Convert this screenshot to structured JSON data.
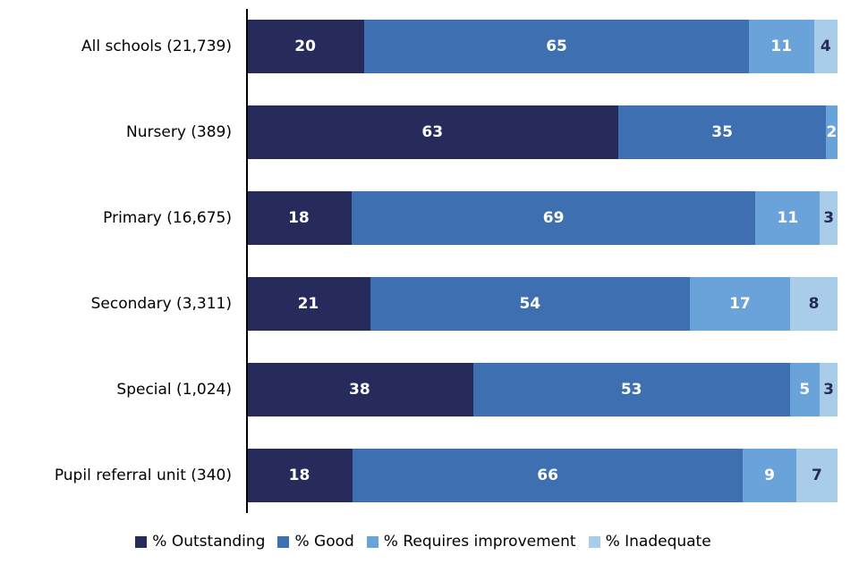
{
  "chart_data": {
    "type": "bar",
    "orientation": "horizontal",
    "stacked": true,
    "title": "",
    "xlabel": "",
    "ylabel": "",
    "xlim": [
      0,
      100
    ],
    "grid": false,
    "legend_position": "bottom",
    "axis_color": "#000000",
    "background": "#ffffff",
    "categories": [
      "All schools (21,739)",
      "Nursery (389)",
      "Primary (16,675)",
      "Secondary (3,311)",
      "Special (1,024)",
      "Pupil referral unit (340)"
    ],
    "series": [
      {
        "key": "outstanding",
        "name": "% Outstanding",
        "color": "#262b5c",
        "label_color": "#ffffff",
        "values": [
          20,
          63,
          18,
          21,
          38,
          18
        ]
      },
      {
        "key": "good",
        "name": "% Good",
        "color": "#3e6fb0",
        "label_color": "#ffffff",
        "values": [
          65,
          35,
          69,
          54,
          53,
          66
        ]
      },
      {
        "key": "requires-improvement",
        "name": "% Requires improvement",
        "color": "#6aa3d9",
        "label_color": "#ffffff",
        "values": [
          11,
          2,
          11,
          17,
          5,
          9
        ]
      },
      {
        "key": "inadequate",
        "name": "% Inadequate",
        "color": "#a9cde9",
        "label_color": "#262b5c",
        "values": [
          4,
          0,
          3,
          8,
          3,
          7
        ]
      }
    ]
  }
}
